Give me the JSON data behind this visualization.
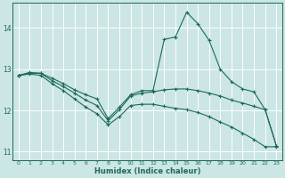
{
  "xlabel": "Humidex (Indice chaleur)",
  "background_color": "#cce5e5",
  "grid_color": "#ffffff",
  "line_color": "#1a6b5a",
  "xlim": [
    -0.5,
    23.5
  ],
  "ylim": [
    10.8,
    14.6
  ],
  "yticks": [
    11,
    12,
    13,
    14
  ],
  "xticks": [
    0,
    1,
    2,
    3,
    4,
    5,
    6,
    7,
    8,
    9,
    10,
    11,
    12,
    13,
    14,
    15,
    16,
    17,
    18,
    19,
    20,
    21,
    22,
    23
  ],
  "series1": [
    12.85,
    12.92,
    12.9,
    12.78,
    12.65,
    12.5,
    12.38,
    12.28,
    11.8,
    12.08,
    12.38,
    12.48,
    12.48,
    13.72,
    13.78,
    14.38,
    14.1,
    13.7,
    13.0,
    12.7,
    12.52,
    12.45,
    12.02,
    11.15
  ],
  "series2": [
    12.85,
    12.9,
    12.9,
    12.72,
    12.58,
    12.42,
    12.25,
    12.12,
    11.75,
    12.02,
    12.35,
    12.42,
    12.45,
    12.5,
    12.52,
    12.52,
    12.48,
    12.42,
    12.35,
    12.25,
    12.18,
    12.1,
    12.02,
    11.15
  ],
  "series3": [
    12.85,
    12.88,
    12.85,
    12.65,
    12.48,
    12.28,
    12.08,
    11.92,
    11.65,
    11.85,
    12.12,
    12.15,
    12.15,
    12.1,
    12.05,
    12.02,
    11.95,
    11.85,
    11.72,
    11.6,
    11.45,
    11.3,
    11.12,
    11.12
  ]
}
